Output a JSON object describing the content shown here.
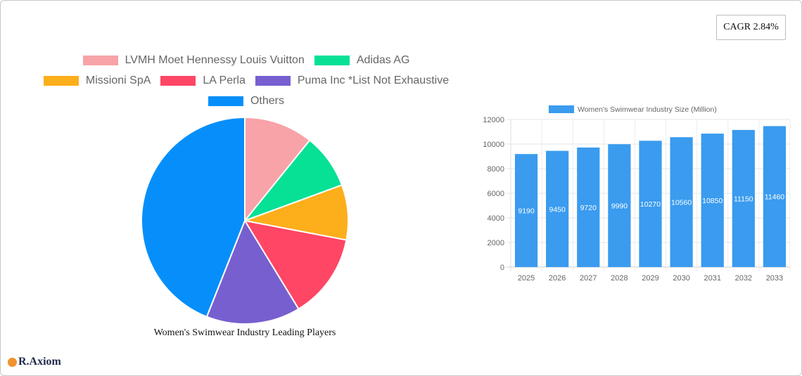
{
  "cagr": {
    "label": "CAGR 2.84%"
  },
  "logo": {
    "text": "R.Axiom",
    "icon": "chart-badge-icon"
  },
  "pie": {
    "title": "Women's Swimwear Industry Leading Players",
    "legend": [
      {
        "label": "LVMH Moet Hennessy Louis Vuitton",
        "color": "#f7a3a8"
      },
      {
        "label": "Adidas AG",
        "color": "#06e196"
      },
      {
        "label": "Missioni SpA",
        "color": "#fdae1b"
      },
      {
        "label": "LA Perla",
        "color": "#ff4664"
      },
      {
        "label": "Puma Inc *List Not Exhaustive",
        "color": "#785fcf"
      },
      {
        "label": "Others",
        "color": "#068ffa"
      }
    ]
  },
  "bar": {
    "legend_label": "Women's Swimwear Industry Size (Million)",
    "color": "#3a9bef"
  },
  "chart_data": [
    {
      "type": "pie",
      "title": "Women's Swimwear Industry Leading Players",
      "categories": [
        "LVMH Moet Hennessy Louis Vuitton",
        "Adidas AG",
        "Missioni SpA",
        "LA Perla",
        "Puma Inc *List Not Exhaustive",
        "Others"
      ],
      "values": [
        10.8,
        8.6,
        8.6,
        13.3,
        14.7,
        44.0
      ],
      "colors": [
        "#f7a3a8",
        "#06e196",
        "#fdae1b",
        "#ff4664",
        "#785fcf",
        "#068ffa"
      ],
      "legend_position": "top"
    },
    {
      "type": "bar",
      "title": "",
      "categories": [
        "2025",
        "2026",
        "2027",
        "2028",
        "2029",
        "2030",
        "2031",
        "2032",
        "2033"
      ],
      "series": [
        {
          "name": "Women's Swimwear Industry Size (Million)",
          "values": [
            9190,
            9450,
            9720,
            9990,
            10270,
            10560,
            10850,
            11150,
            11460
          ]
        }
      ],
      "xlabel": "",
      "ylabel": "",
      "ylim": [
        0,
        12000
      ],
      "yticks": [
        0,
        2000,
        4000,
        6000,
        8000,
        10000,
        12000
      ],
      "grid": true,
      "legend_position": "top",
      "data_labels": true
    }
  ]
}
